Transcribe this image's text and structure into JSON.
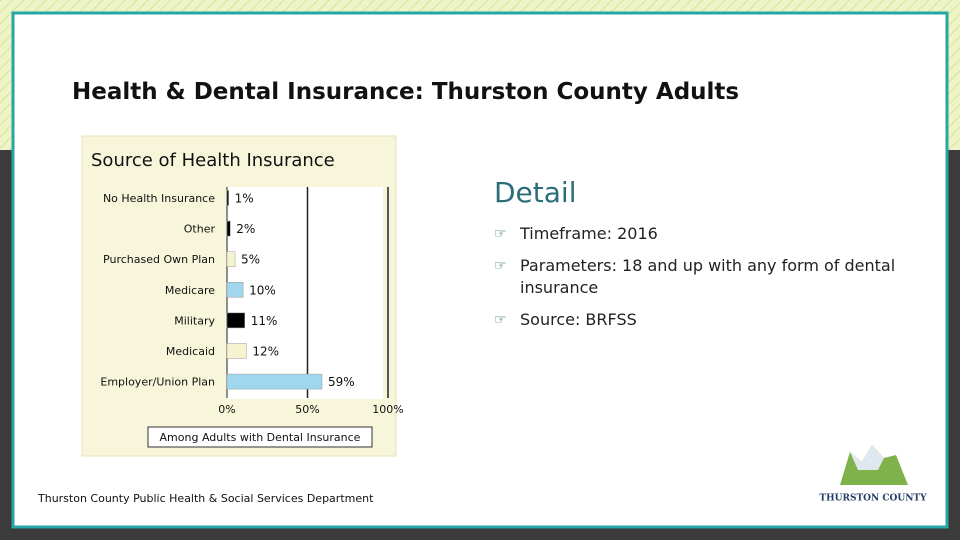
{
  "title": "Health & Dental Insurance: Thurston County Adults",
  "chart_data": {
    "type": "hbar",
    "title": "Source of Health Insurance",
    "categories": [
      "No Health Insurance",
      "Other",
      "Purchased Own Plan",
      "Medicare",
      "Military",
      "Medicaid",
      "Employer/Union Plan"
    ],
    "series": [
      {
        "name": "Among Adults with Dental Insurance",
        "values": [
          1,
          2,
          5,
          10,
          11,
          12,
          59
        ],
        "value_labels": [
          "1%",
          "2%",
          "5%",
          "10%",
          "11%",
          "12%",
          "59%"
        ],
        "colors": [
          "#000000",
          "#000000",
          "#f5f3d0",
          "#9fd8ee",
          "#000000",
          "#f5f3d0",
          "#9fd8ee"
        ]
      }
    ],
    "xlim": [
      0,
      100
    ],
    "xticks": [
      {
        "value": 0,
        "label": "0%"
      },
      {
        "value": 50,
        "label": "50%"
      },
      {
        "value": 100,
        "label": "100%"
      }
    ],
    "grid": true
  },
  "detail": {
    "heading": "Detail",
    "items": [
      "Timeframe: 2016",
      "Parameters: 18 and up with any form of dental insurance",
      "Source: BRFSS"
    ]
  },
  "footer": "Thurston County Public Health & Social Services Department",
  "logo": {
    "text": "THURSTON COUNTY"
  }
}
